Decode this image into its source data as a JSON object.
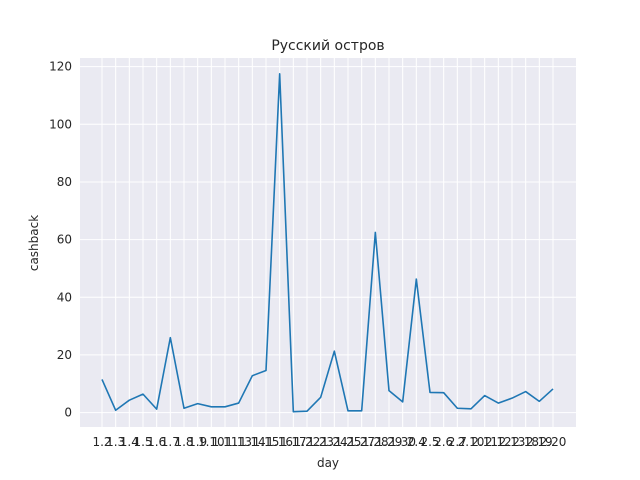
{
  "chart_data": {
    "type": "line",
    "title": "Русский остров",
    "xlabel": "day",
    "ylabel": "cashback",
    "ylim": [
      -5,
      123
    ],
    "yticks": [
      0,
      20,
      40,
      60,
      80,
      100,
      120
    ],
    "grid": true,
    "legend": "none",
    "colors": {
      "line": "#1f77b4",
      "background": "#eaeaf2",
      "grid": "#ffffff"
    },
    "categories": [
      "1.2",
      "1.3",
      "1.4",
      "1.5",
      "1.6",
      "1.7",
      "1.8",
      "1.9",
      "1.10",
      "1.11",
      "1.13",
      "1.14",
      "1.15",
      "1.16",
      "1.17",
      "1.22",
      "1.23",
      "1.24",
      "1.25",
      "1.27",
      "1.28",
      "1.29",
      "1.30",
      "2.4",
      "2.5",
      "2.6",
      "2.7",
      "2.10",
      "2.11",
      "2.12",
      "2.13",
      "2.18",
      "2.19",
      "2.20"
    ],
    "values": [
      11.5,
      0.8,
      4.3,
      6.4,
      1.2,
      26.0,
      1.5,
      3.1,
      2.0,
      2.0,
      3.3,
      12.8,
      14.6,
      117.5,
      0.3,
      0.5,
      5.3,
      21.3,
      0.6,
      0.6,
      62.5,
      7.6,
      3.7,
      46.3,
      7.0,
      6.9,
      1.5,
      1.3,
      5.9,
      3.3,
      5.0,
      7.3,
      3.9,
      8.2
    ]
  }
}
